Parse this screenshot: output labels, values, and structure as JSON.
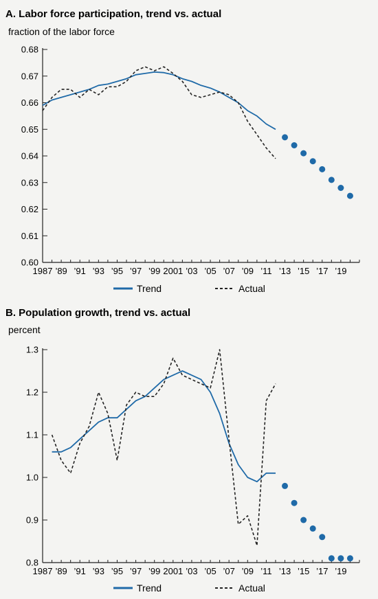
{
  "chart_data": [
    {
      "type": "line",
      "title": "A. Labor force participation, trend vs. actual",
      "ylabel": "fraction of the labor force",
      "xlim": [
        1987,
        2021
      ],
      "ylim": [
        0.6,
        0.68
      ],
      "yticks": [
        0.6,
        0.61,
        0.62,
        0.63,
        0.64,
        0.65,
        0.66,
        0.67,
        0.68
      ],
      "ytick_labels": [
        "0.60",
        "0.61",
        "0.62",
        "0.63",
        "0.64",
        "0.65",
        "0.66",
        "0.67",
        "0.68"
      ],
      "xticks": [
        1987,
        1989,
        1991,
        1993,
        1995,
        1997,
        1999,
        2001,
        2003,
        2005,
        2007,
        2009,
        2011,
        2013,
        2015,
        2017,
        2019
      ],
      "xtick_labels": [
        "1987",
        "’89",
        "’91",
        "’93",
        "’95",
        "’97",
        "’99",
        "2001",
        "’03",
        "’05",
        "’07",
        "’09",
        "’11",
        "’13",
        "’15",
        "’17",
        "’19"
      ],
      "legend": [
        "Trend",
        "Actual"
      ],
      "colors": {
        "trend": "#1f6aa8",
        "actual": "#222222"
      },
      "series": [
        {
          "name": "Trend",
          "x": [
            1987,
            1988,
            1989,
            1990,
            1991,
            1992,
            1993,
            1994,
            1995,
            1996,
            1997,
            1998,
            1999,
            2000,
            2001,
            2002,
            2003,
            2004,
            2005,
            2006,
            2007,
            2008,
            2009,
            2010,
            2011,
            2012
          ],
          "y": [
            0.659,
            0.661,
            0.662,
            0.663,
            0.664,
            0.665,
            0.6665,
            0.667,
            0.668,
            0.669,
            0.6705,
            0.671,
            0.6715,
            0.6713,
            0.6705,
            0.669,
            0.668,
            0.6665,
            0.6655,
            0.664,
            0.662,
            0.66,
            0.657,
            0.655,
            0.652,
            0.65
          ]
        },
        {
          "name": "Actual",
          "x": [
            1987,
            1988,
            1989,
            1990,
            1991,
            1992,
            1993,
            1994,
            1995,
            1996,
            1997,
            1998,
            1999,
            2000,
            2001,
            2002,
            2003,
            2004,
            2005,
            2006,
            2007,
            2008,
            2009,
            2010,
            2011,
            2012
          ],
          "y": [
            0.657,
            0.662,
            0.665,
            0.665,
            0.662,
            0.665,
            0.663,
            0.666,
            0.666,
            0.668,
            0.672,
            0.6735,
            0.672,
            0.6735,
            0.671,
            0.668,
            0.663,
            0.662,
            0.663,
            0.664,
            0.663,
            0.66,
            0.653,
            0.648,
            0.643,
            0.639
          ]
        },
        {
          "name": "",
          "style": "dots",
          "x": [
            2013,
            2014,
            2015,
            2016,
            2017,
            2018,
            2019,
            2020
          ],
          "y": [
            0.647,
            0.644,
            0.641,
            0.638,
            0.635,
            0.631,
            0.628,
            0.625
          ]
        }
      ]
    },
    {
      "type": "line",
      "title": "B. Population growth, trend vs. actual",
      "ylabel": "percent",
      "xlim": [
        1987,
        2021
      ],
      "ylim": [
        0.8,
        1.3
      ],
      "yticks": [
        0.8,
        0.9,
        1.0,
        1.1,
        1.2,
        1.3
      ],
      "ytick_labels": [
        "0.8",
        "0.9",
        "1.0",
        "1.1",
        "1.2",
        "1.3"
      ],
      "xticks": [
        1987,
        1989,
        1991,
        1993,
        1995,
        1997,
        1999,
        2001,
        2003,
        2005,
        2007,
        2009,
        2011,
        2013,
        2015,
        2017,
        2019
      ],
      "xtick_labels": [
        "1987",
        "’89",
        "’91",
        "’93",
        "’95",
        "’97",
        "’99",
        "2001",
        "’03",
        "’05",
        "’07",
        "’09",
        "’11",
        "’13",
        "’15",
        "’17",
        "’19"
      ],
      "legend": [
        "Trend",
        "Actual"
      ],
      "colors": {
        "trend": "#1f6aa8",
        "actual": "#222222"
      },
      "series": [
        {
          "name": "Trend",
          "x": [
            1988,
            1989,
            1990,
            1991,
            1992,
            1993,
            1994,
            1995,
            1996,
            1997,
            1998,
            1999,
            2000,
            2001,
            2002,
            2003,
            2004,
            2005,
            2006,
            2007,
            2008,
            2009,
            2010,
            2011,
            2012
          ],
          "y": [
            1.06,
            1.06,
            1.07,
            1.09,
            1.11,
            1.13,
            1.14,
            1.14,
            1.16,
            1.18,
            1.19,
            1.21,
            1.23,
            1.24,
            1.25,
            1.24,
            1.23,
            1.2,
            1.15,
            1.08,
            1.03,
            1.0,
            0.99,
            1.01,
            1.01
          ]
        },
        {
          "name": "Actual",
          "x": [
            1988,
            1989,
            1990,
            1991,
            1992,
            1993,
            1994,
            1995,
            1996,
            1997,
            1998,
            1999,
            2000,
            2001,
            2002,
            2003,
            2004,
            2005,
            2006,
            2007,
            2008,
            2009,
            2010,
            2011,
            2012
          ],
          "y": [
            1.1,
            1.04,
            1.01,
            1.08,
            1.12,
            1.2,
            1.15,
            1.04,
            1.17,
            1.2,
            1.19,
            1.19,
            1.22,
            1.28,
            1.24,
            1.23,
            1.22,
            1.21,
            1.3,
            1.09,
            0.89,
            0.91,
            0.84,
            1.18,
            1.22
          ]
        },
        {
          "name": "",
          "style": "dots",
          "x": [
            2013,
            2014,
            2015,
            2016,
            2017,
            2018,
            2019,
            2020
          ],
          "y": [
            0.98,
            0.94,
            0.9,
            0.88,
            0.86,
            0.81,
            0.81,
            0.81
          ]
        }
      ]
    }
  ]
}
